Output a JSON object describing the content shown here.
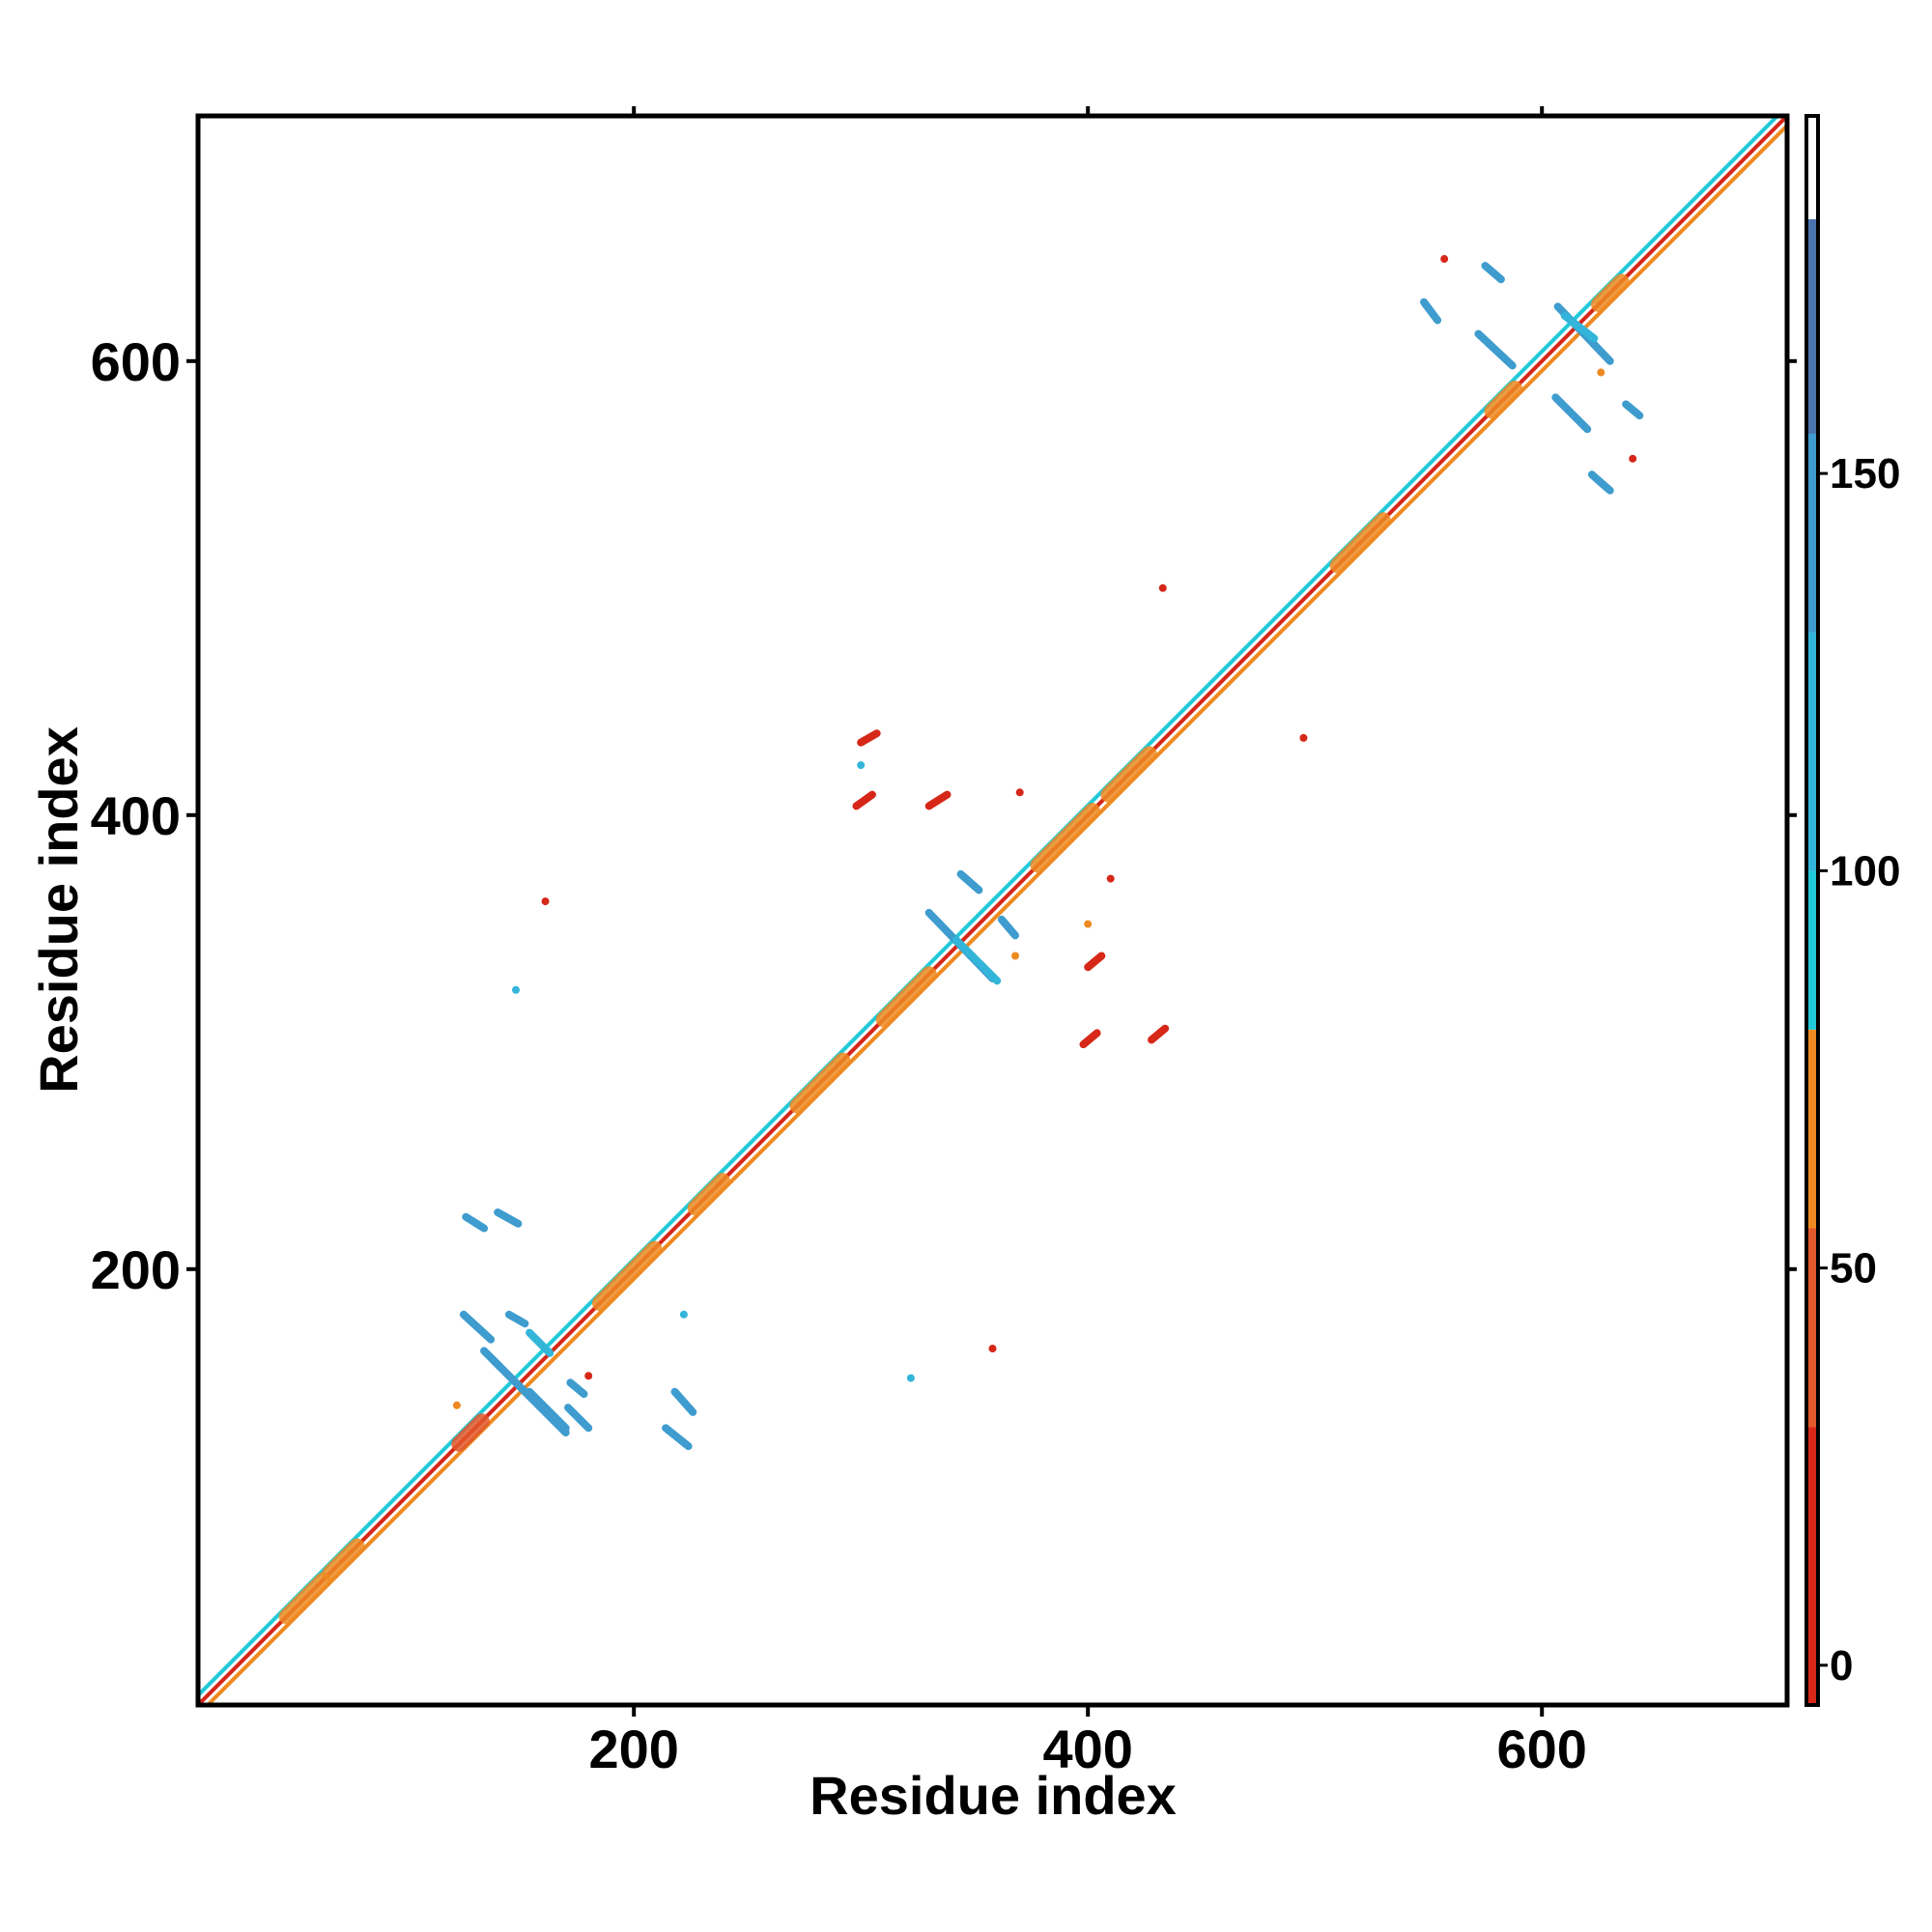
{
  "chart_data": {
    "type": "heatmap",
    "title": "",
    "xlabel": "Residue index",
    "ylabel": "Residue index",
    "xlim": [
      8,
      708
    ],
    "ylim": [
      8,
      708
    ],
    "x_ticks": [
      200,
      400,
      600
    ],
    "y_ticks": [
      200,
      400,
      600
    ],
    "grid": false,
    "colorbar": {
      "range": [
        -5,
        195
      ],
      "ticks": [
        0,
        50,
        100,
        150
      ],
      "segments": [
        {
          "from": -5,
          "to": 30,
          "color": "#d62718"
        },
        {
          "from": 30,
          "to": 55,
          "color": "#e2582a"
        },
        {
          "from": 55,
          "to": 80,
          "color": "#ee8a22"
        },
        {
          "from": 80,
          "to": 100,
          "color": "#22c9d8"
        },
        {
          "from": 100,
          "to": 130,
          "color": "#33b5da"
        },
        {
          "from": 130,
          "to": 155,
          "color": "#3e9cce"
        },
        {
          "from": 155,
          "to": 182,
          "color": "#4a74ad"
        },
        {
          "from": 182,
          "to": 195,
          "color": "#ffffff"
        }
      ]
    },
    "diagonal": {
      "from": 8,
      "to": 708,
      "color": "#e2582a"
    },
    "diagonal_bands": [
      {
        "center": 55,
        "half_length": 8,
        "value": 70
      },
      {
        "center": 72,
        "half_length": 6,
        "value": 70
      },
      {
        "center": 128,
        "half_length": 5,
        "value": 40
      },
      {
        "center": 197,
        "half_length": 12,
        "value": 72
      },
      {
        "center": 233,
        "half_length": 6,
        "value": 72
      },
      {
        "center": 282,
        "half_length": 10,
        "value": 72
      },
      {
        "center": 320,
        "half_length": 10,
        "value": 72
      },
      {
        "center": 390,
        "half_length": 12,
        "value": 72
      },
      {
        "center": 418,
        "half_length": 9,
        "value": 72
      },
      {
        "center": 520,
        "half_length": 10,
        "value": 72
      },
      {
        "center": 583,
        "half_length": 5,
        "value": 72
      },
      {
        "center": 630,
        "half_length": 5,
        "value": 72
      }
    ],
    "contact_segments": [
      {
        "x1": 126,
        "y1": 223,
        "x2": 134,
        "y2": 218,
        "value": 130
      },
      {
        "x1": 140,
        "y1": 225,
        "x2": 149,
        "y2": 220,
        "value": 130
      },
      {
        "x1": 125,
        "y1": 180,
        "x2": 137,
        "y2": 169,
        "value": 130
      },
      {
        "x1": 145,
        "y1": 180,
        "x2": 152,
        "y2": 176,
        "value": 130
      },
      {
        "x1": 134,
        "y1": 164,
        "x2": 141,
        "y2": 157,
        "value": 130
      },
      {
        "x1": 138,
        "y1": 160,
        "x2": 170,
        "y2": 128,
        "value": 150
      },
      {
        "x1": 154,
        "y1": 146,
        "x2": 170,
        "y2": 130,
        "value": 150
      },
      {
        "x1": 154,
        "y1": 172,
        "x2": 163,
        "y2": 163,
        "value": 110
      },
      {
        "x1": 172,
        "y1": 150,
        "x2": 178,
        "y2": 145,
        "value": 130
      },
      {
        "x1": 171,
        "y1": 139,
        "x2": 180,
        "y2": 130,
        "value": 130
      },
      {
        "x1": 218,
        "y1": 146,
        "x2": 226,
        "y2": 137,
        "value": 130
      },
      {
        "x1": 214,
        "y1": 130,
        "x2": 224,
        "y2": 122,
        "value": 130
      },
      {
        "x1": 300,
        "y1": 432,
        "x2": 307,
        "y2": 436,
        "value": 0
      },
      {
        "x1": 298,
        "y1": 404,
        "x2": 305,
        "y2": 409,
        "value": 0
      },
      {
        "x1": 330,
        "y1": 404,
        "x2": 338,
        "y2": 409,
        "value": 0
      },
      {
        "x1": 344,
        "y1": 374,
        "x2": 352,
        "y2": 367,
        "value": 130
      },
      {
        "x1": 330,
        "y1": 357,
        "x2": 358,
        "y2": 328,
        "value": 150
      },
      {
        "x1": 342,
        "y1": 345,
        "x2": 360,
        "y2": 327,
        "value": 110
      },
      {
        "x1": 362,
        "y1": 354,
        "x2": 368,
        "y2": 347,
        "value": 130
      },
      {
        "x1": 400,
        "y1": 333,
        "x2": 406,
        "y2": 338,
        "value": 0
      },
      {
        "x1": 398,
        "y1": 299,
        "x2": 404,
        "y2": 304,
        "value": 0
      },
      {
        "x1": 428,
        "y1": 301,
        "x2": 434,
        "y2": 306,
        "value": 0
      },
      {
        "x1": 548,
        "y1": 626,
        "x2": 554,
        "y2": 618,
        "value": 130
      },
      {
        "x1": 575,
        "y1": 642,
        "x2": 582,
        "y2": 636,
        "value": 130
      },
      {
        "x1": 572,
        "y1": 612,
        "x2": 587,
        "y2": 598,
        "value": 130
      },
      {
        "x1": 607,
        "y1": 624,
        "x2": 630,
        "y2": 600,
        "value": 150
      },
      {
        "x1": 610,
        "y1": 620,
        "x2": 623,
        "y2": 610,
        "value": 110
      },
      {
        "x1": 606,
        "y1": 584,
        "x2": 620,
        "y2": 570,
        "value": 130
      },
      {
        "x1": 637,
        "y1": 581,
        "x2": 643,
        "y2": 576,
        "value": 130
      },
      {
        "x1": 622,
        "y1": 550,
        "x2": 630,
        "y2": 543,
        "value": 130
      }
    ],
    "isolated_points": [
      {
        "x": 161,
        "y": 362,
        "value": 0
      },
      {
        "x": 358,
        "y": 165,
        "value": 0
      },
      {
        "x": 433,
        "y": 500,
        "value": 0
      },
      {
        "x": 495,
        "y": 434,
        "value": 0
      },
      {
        "x": 557,
        "y": 645,
        "value": 0
      },
      {
        "x": 640,
        "y": 557,
        "value": 0
      },
      {
        "x": 180,
        "y": 153,
        "value": 0
      },
      {
        "x": 410,
        "y": 372,
        "value": 0
      },
      {
        "x": 370,
        "y": 410,
        "value": 0
      },
      {
        "x": 148,
        "y": 323,
        "value": 100
      },
      {
        "x": 322,
        "y": 152,
        "value": 100
      },
      {
        "x": 222,
        "y": 180,
        "value": 100
      },
      {
        "x": 300,
        "y": 422,
        "value": 100
      },
      {
        "x": 400,
        "y": 352,
        "value": 60
      },
      {
        "x": 368,
        "y": 338,
        "value": 60
      },
      {
        "x": 122,
        "y": 140,
        "value": 60
      },
      {
        "x": 626,
        "y": 595,
        "value": 60
      }
    ]
  }
}
